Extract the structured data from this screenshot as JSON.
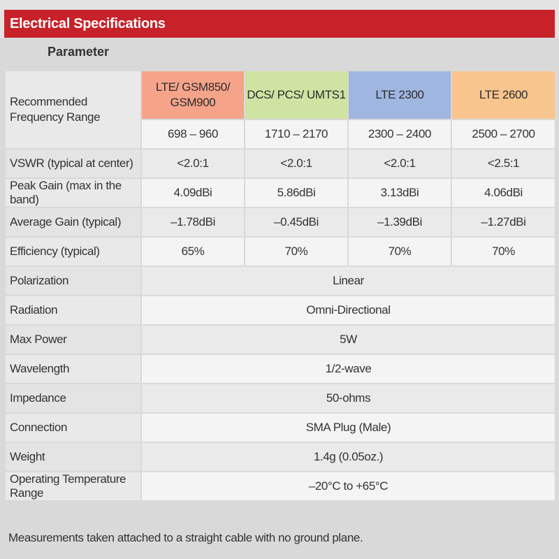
{
  "header": {
    "title": "Electrical Specifications",
    "parameter_label": "Parameter"
  },
  "bands": [
    {
      "name": "LTE/ GSM850/ GSM900",
      "range": "698 – 960",
      "color": "#f5a48a"
    },
    {
      "name": "DCS/ PCS/ UMTS1",
      "range": "1710 – 2170",
      "color": "#cfe3a2"
    },
    {
      "name": "LTE 2300",
      "range": "2300 – 2400",
      "color": "#9fb6e0"
    },
    {
      "name": "LTE 2600",
      "range": "2500 – 2700",
      "color": "#f8c58f"
    }
  ],
  "freq_label": "Recommended Frequency Range",
  "per_band_rows": [
    {
      "label": "VSWR (typical at center)",
      "values": [
        "<2.0:1",
        "<2.0:1",
        "<2.0:1",
        "<2.5:1"
      ]
    },
    {
      "label": "Peak Gain (max in the band)",
      "values": [
        "4.09dBi",
        "5.86dBi",
        "3.13dBi",
        "4.06dBi"
      ]
    },
    {
      "label": "Average Gain (typical)",
      "values": [
        "–1.78dBi",
        "–0.45dBi",
        "–1.39dBi",
        "–1.27dBi"
      ]
    },
    {
      "label": "Efficiency (typical)",
      "values": [
        "65%",
        "70%",
        "70%",
        "70%"
      ]
    }
  ],
  "common_rows": [
    {
      "label": "Polarization",
      "value": "Linear"
    },
    {
      "label": "Radiation",
      "value": "Omni-Directional"
    },
    {
      "label": "Max Power",
      "value": "5W"
    },
    {
      "label": "Wavelength",
      "value": "1/2-wave"
    },
    {
      "label": "Impedance",
      "value": "50-ohms"
    },
    {
      "label": "Connection",
      "value": "SMA Plug (Male)"
    },
    {
      "label": "Weight",
      "value": "1.4g (0.05oz.)"
    },
    {
      "label": "Operating Temperature Range",
      "value": "–20°C to +65°C"
    }
  ],
  "footnote": "Measurements taken attached to a straight cable with no ground plane."
}
